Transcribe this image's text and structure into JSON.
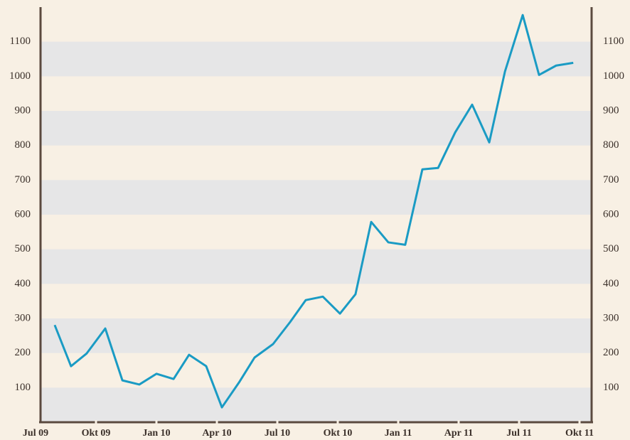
{
  "chart_data": {
    "type": "line",
    "x": [
      0.95,
      1.76,
      2.54,
      3.46,
      4.31,
      5.15,
      6.0,
      6.85,
      7.62,
      8.47,
      9.25,
      10.1,
      10.87,
      11.79,
      12.64,
      13.41,
      14.26,
      15.11,
      15.88,
      16.66,
      17.51,
      18.35,
      19.2,
      19.98,
      20.83,
      21.67,
      22.52,
      23.3,
      24.18,
      24.99,
      25.84,
      26.69
    ],
    "series": [
      {
        "color": "#1a9bc4",
        "values": [
          281,
          162,
          199,
          271,
          121,
          109,
          140,
          125,
          195,
          162,
          43,
          115,
          187,
          226,
          290,
          353,
          363,
          314,
          370,
          579,
          520,
          513,
          731,
          735,
          838,
          918,
          809,
          1014,
          1177,
          1004,
          1031,
          1039
        ]
      }
    ],
    "xlim": [
      0,
      27
    ],
    "xticks": [
      {
        "value": 0,
        "label": "Jul 09"
      },
      {
        "value": 3,
        "label": "Okt 09"
      },
      {
        "value": 6,
        "label": "Jan 10"
      },
      {
        "value": 9,
        "label": "Apr 10"
      },
      {
        "value": 12,
        "label": "Jul 10"
      },
      {
        "value": 15,
        "label": "Okt 10"
      },
      {
        "value": 18,
        "label": "Jan 11"
      },
      {
        "value": 21,
        "label": "Apr 11"
      },
      {
        "value": 24,
        "label": "Jul 11"
      },
      {
        "value": 27,
        "label": "Okt 11"
      }
    ],
    "ylim": [
      0,
      1200
    ],
    "yticks": [
      100,
      200,
      300,
      400,
      500,
      600,
      700,
      800,
      900,
      1000,
      1100
    ],
    "y2lim": [
      0,
      1200
    ],
    "y2ticks": [
      100,
      200,
      300,
      400,
      500,
      600,
      700,
      800,
      900,
      1000,
      1100
    ],
    "grid": "bands"
  }
}
